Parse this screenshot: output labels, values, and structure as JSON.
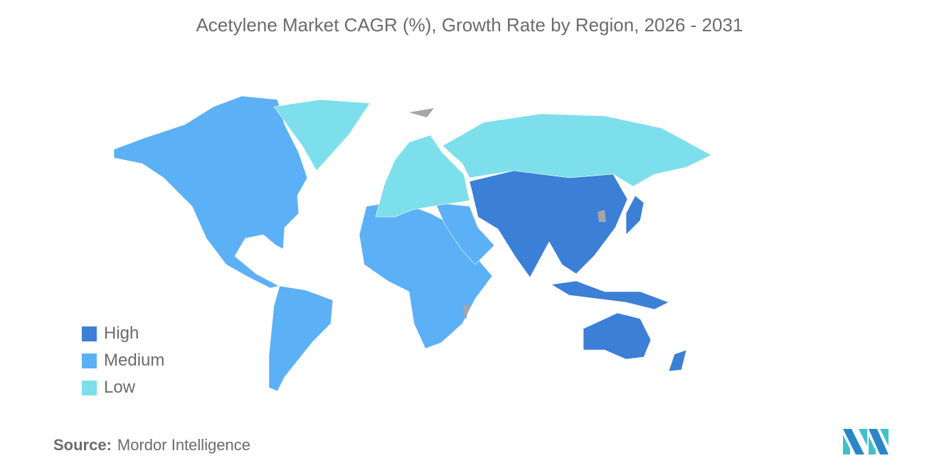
{
  "title": "Acetylene Market CAGR (%), Growth Rate by Region, 2026 - 2031",
  "legend": [
    {
      "label": "High",
      "color": "#3b7fd6"
    },
    {
      "label": "Medium",
      "color": "#5cb0f5"
    },
    {
      "label": "Low",
      "color": "#7ddfec"
    }
  ],
  "no_data_color": "#a6a6a6",
  "regions": [
    {
      "name": "North America",
      "level": "Medium"
    },
    {
      "name": "South America",
      "level": "Medium"
    },
    {
      "name": "Africa",
      "level": "Medium"
    },
    {
      "name": "Middle East",
      "level": "Medium"
    },
    {
      "name": "Greenland",
      "level": "Low"
    },
    {
      "name": "Europe",
      "level": "Low"
    },
    {
      "name": "Russia",
      "level": "Low"
    },
    {
      "name": "Asia",
      "level": "High"
    },
    {
      "name": "Japan",
      "level": "High"
    },
    {
      "name": "Southeast Asia Islands",
      "level": "High"
    },
    {
      "name": "Australia",
      "level": "High"
    },
    {
      "name": "New Zealand",
      "level": "High"
    }
  ],
  "source": {
    "label": "Source:",
    "value": "Mordor Intelligence"
  }
}
